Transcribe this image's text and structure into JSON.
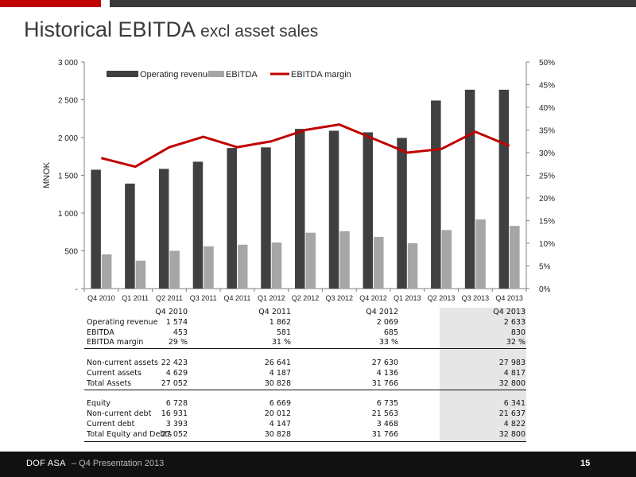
{
  "title": {
    "main": "Historical EBITDA",
    "sub": "excl asset sales"
  },
  "chart_data": {
    "type": "bar",
    "categories": [
      "Q4 2010",
      "Q1 2011",
      "Q2 2011",
      "Q3 2011",
      "Q4 2011",
      "Q1 2012",
      "Q2 2012",
      "Q3 2012",
      "Q4 2012",
      "Q1 2013",
      "Q2 2013",
      "Q3 2013",
      "Q4 2013"
    ],
    "series": [
      {
        "name": "Operating revenue",
        "kind": "bar",
        "axis": "left",
        "color": "#404040",
        "values": [
          1574,
          1390,
          1585,
          1680,
          1862,
          1870,
          2115,
          2090,
          2069,
          1995,
          2490,
          2633,
          2633
        ]
      },
      {
        "name": "EBITDA",
        "kind": "bar",
        "axis": "left",
        "color": "#a6a6a6",
        "values": [
          453,
          370,
          500,
          560,
          581,
          610,
          740,
          760,
          685,
          600,
          775,
          915,
          830
        ]
      },
      {
        "name": "EBITDA margin",
        "kind": "line",
        "axis": "right",
        "color": "#c00000",
        "values": [
          28.8,
          26.9,
          31.2,
          33.5,
          31.2,
          32.5,
          35.0,
          36.2,
          33.1,
          30.0,
          30.8,
          34.6,
          31.5
        ]
      }
    ],
    "ylabel": "MNOK",
    "ylim": [
      0,
      3000
    ],
    "yticks": [
      0,
      500,
      1000,
      1500,
      2000,
      2500,
      3000
    ],
    "ytick_labels": [
      "-",
      "500",
      "1 000",
      "1 500",
      "2 000",
      "2 500",
      "3 000"
    ],
    "y2lim": [
      0,
      50
    ],
    "y2ticks": [
      0,
      5,
      10,
      15,
      20,
      25,
      30,
      35,
      40,
      45,
      50
    ],
    "y2tick_labels": [
      "0%",
      "5%",
      "10%",
      "15%",
      "20%",
      "25%",
      "30%",
      "35%",
      "40%",
      "45%",
      "50%"
    ],
    "grid": false,
    "legend": "top-left"
  },
  "table": {
    "columns": [
      "Q4 2010",
      "Q4 2011",
      "Q4 2012",
      "Q4 2013"
    ],
    "rows": [
      {
        "label": "Operating revenue",
        "values": [
          "1 574",
          "1 862",
          "2 069",
          "2 633"
        ]
      },
      {
        "label": "EBITDA",
        "values": [
          "453",
          "581",
          "685",
          "830"
        ]
      },
      {
        "label": "EBITDA margin",
        "values": [
          "29 %",
          "31 %",
          "33 %",
          "32 %"
        ]
      },
      {
        "label": "",
        "values": [
          "",
          "",
          "",
          ""
        ]
      },
      {
        "label": "Non-current assets",
        "values": [
          "22 423",
          "26 641",
          "27 630",
          "27 983"
        ]
      },
      {
        "label": "Current assets",
        "values": [
          "4 629",
          "4 187",
          "4 136",
          "4 817"
        ]
      },
      {
        "label": "Total Assets",
        "values": [
          "27 052",
          "30 828",
          "31 766",
          "32 800"
        ]
      },
      {
        "label": "",
        "values": [
          "",
          "",
          "",
          ""
        ]
      },
      {
        "label": "Equity",
        "values": [
          "6 728",
          "6 669",
          "6 735",
          "6 341"
        ]
      },
      {
        "label": "Non-current debt",
        "values": [
          "16 931",
          "20 012",
          "21 563",
          "21 637"
        ]
      },
      {
        "label": "Current debt",
        "values": [
          "3 393",
          "4 147",
          "3 468",
          "4 822"
        ]
      },
      {
        "label": "Total Equity and Debts",
        "values": [
          "27 052",
          "30 828",
          "31 766",
          "32 800"
        ]
      }
    ]
  },
  "footer": {
    "company": "DOF ASA",
    "presentation": "– Q4 Presentation 2013",
    "page": "15"
  }
}
